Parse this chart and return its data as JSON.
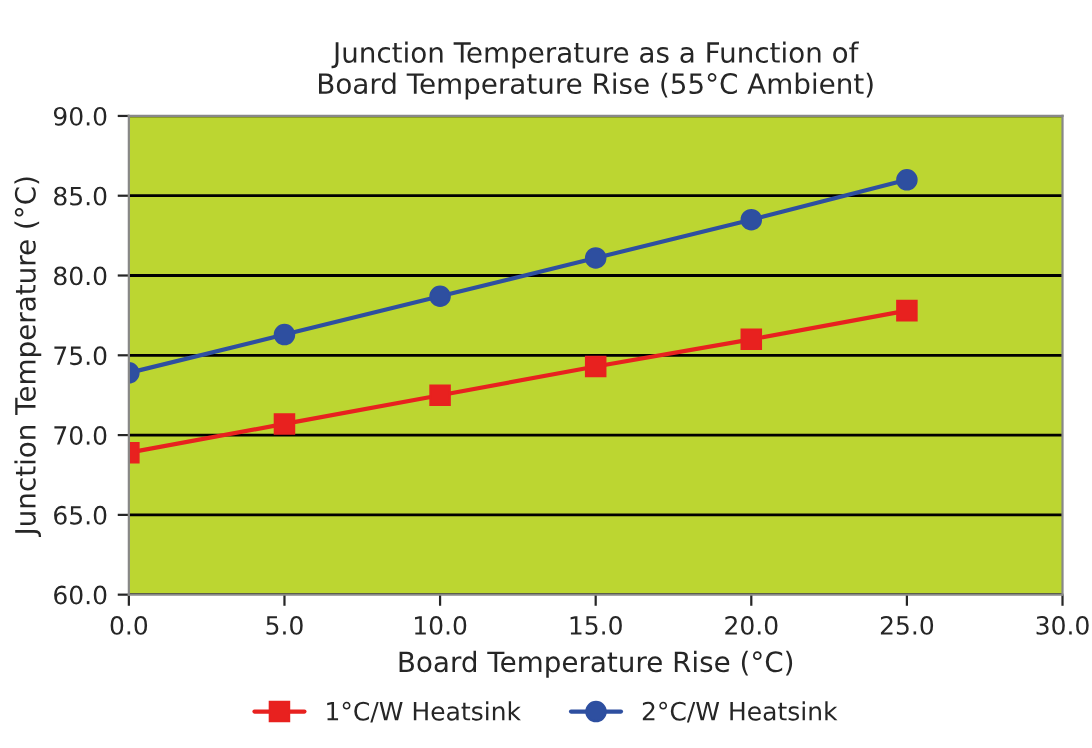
{
  "chart_data": {
    "type": "line",
    "title": "Junction Temperature as a Function of\nBoard Temperature Rise (55°C Ambient)",
    "xlabel": "Board Temperature Rise (°C)",
    "ylabel": "Junction Temperature (°C)",
    "x": [
      0,
      5,
      10,
      15,
      20,
      25
    ],
    "series": [
      {
        "name": "1°C/W Heatsink",
        "color": "#e8211f",
        "marker": "square",
        "values": [
          68.9,
          70.7,
          72.5,
          74.3,
          76.0,
          77.8
        ]
      },
      {
        "name": "2°C/W Heatsink",
        "color": "#2e4fa0",
        "marker": "circle",
        "values": [
          73.9,
          76.3,
          78.7,
          81.1,
          83.5,
          86.0
        ]
      }
    ],
    "xlim": [
      0,
      30
    ],
    "xticks": [
      {
        "value": 0,
        "label": "0.0"
      },
      {
        "value": 5,
        "label": "5.0"
      },
      {
        "value": 10,
        "label": "10.0"
      },
      {
        "value": 15,
        "label": "15.0"
      },
      {
        "value": 20,
        "label": "20.0"
      },
      {
        "value": 25,
        "label": "25.0"
      },
      {
        "value": 30,
        "label": "30.0"
      }
    ],
    "ylim": [
      60,
      90
    ],
    "yticks": [
      {
        "value": 60,
        "label": "60.0"
      },
      {
        "value": 65,
        "label": "65.0"
      },
      {
        "value": 70,
        "label": "70.0"
      },
      {
        "value": 75,
        "label": "75.0"
      },
      {
        "value": 80,
        "label": "80.0"
      },
      {
        "value": 85,
        "label": "85.0"
      },
      {
        "value": 90,
        "label": "90.0"
      }
    ],
    "grid": "y",
    "legend": "bottom"
  }
}
